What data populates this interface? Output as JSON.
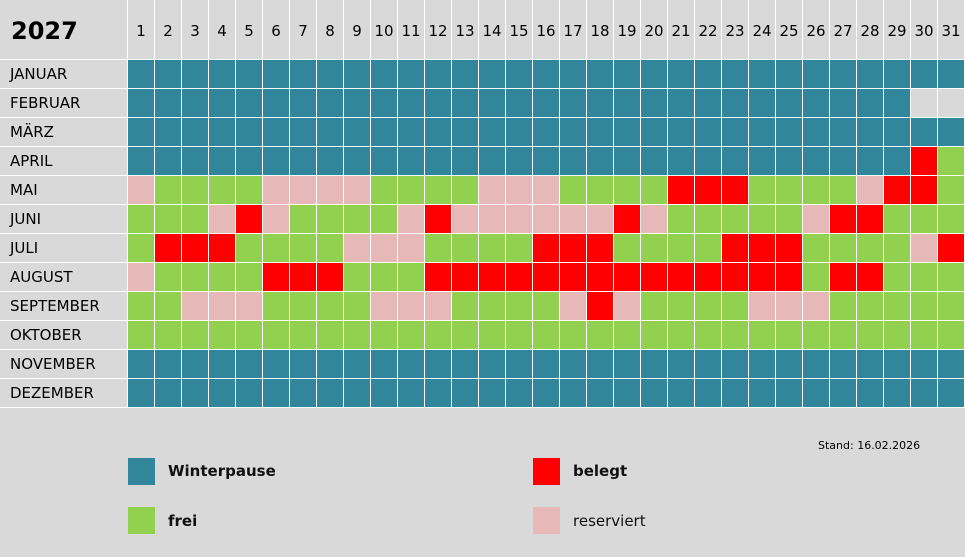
{
  "year": "2027",
  "days": [
    "1",
    "2",
    "3",
    "4",
    "5",
    "6",
    "7",
    "8",
    "9",
    "10",
    "11",
    "12",
    "13",
    "14",
    "15",
    "16",
    "17",
    "18",
    "19",
    "20",
    "21",
    "22",
    "23",
    "24",
    "25",
    "26",
    "27",
    "28",
    "29",
    "30",
    "31"
  ],
  "status_key": {
    "W": "Winterpause",
    "F": "frei",
    "B": "belegt",
    "R": "reserviert",
    "X": "n/a"
  },
  "colors": {
    "W": "#31869b",
    "F": "#92d050",
    "B": "#ff0000",
    "R": "#e6b8b7",
    "X": "#d9d9d9"
  },
  "months": [
    {
      "name": "JANUAR",
      "days": "WWWWWWWWWWWWWWWWWWWWWWWWWWWWWWW"
    },
    {
      "name": "FEBRUAR",
      "days": "WWWWWWWWWWWWWWWWWWWWWWWWWWWWWXX"
    },
    {
      "name": "MÄRZ",
      "days": "WWWWWWWWWWWWWWWWWWWWWWWWWWWWWWW"
    },
    {
      "name": "APRIL",
      "days": "WWWWWWWWWWWWWWWWWWWWWWWWWWWWWBF"
    },
    {
      "name": "MAI",
      "days": "RFFFFRRRRFFFFRRRFFFFBBBFFFFRBBF"
    },
    {
      "name": "JUNI",
      "days": "FFFRBRFFFFRBRRRRRRBRFFFFFRBBFFF"
    },
    {
      "name": "JULI",
      "days": "FBBBFFFFRRRFFFFBBBFFFFBBBFFFFRB"
    },
    {
      "name": "AUGUST",
      "days": "RFFFFBBBFFFBBBBBBBBBBBBBBFBBFFF"
    },
    {
      "name": "SEPTEMBER",
      "days": "FFRRRFFFFRRRFFFFRBRFFFFRRRFFFFF"
    },
    {
      "name": "OKTOBER",
      "days": "FFFFFFFFFFFFFFFFFFFFFFFFFFFFFFF"
    },
    {
      "name": "NOVEMBER",
      "days": "WWWWWWWWWWWWWWWWWWWWWWWWWWWWWWW"
    },
    {
      "name": "DEZEMBER",
      "days": "WWWWWWWWWWWWWWWWWWWWWWWWWWWWWWW"
    }
  ],
  "legend": {
    "winterpause": "Winterpause",
    "frei": "frei",
    "belegt": "belegt",
    "reserviert": "reserviert"
  },
  "stand": "Stand: 16.02.2026"
}
